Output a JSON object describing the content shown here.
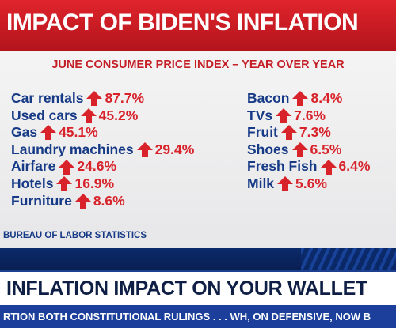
{
  "title": "IMPACT OF BIDEN'S INFLATION",
  "subtitle": "JUNE CONSUMER PRICE INDEX – YEAR OVER YEAR",
  "left_items": [
    {
      "label": "Car rentals",
      "value": "87.7%"
    },
    {
      "label": "Used cars",
      "value": "45.2%"
    },
    {
      "label": "Gas",
      "value": "45.1%"
    },
    {
      "label": "Laundry machines",
      "value": "29.4%"
    },
    {
      "label": "Airfare",
      "value": "24.6%"
    },
    {
      "label": "Hotels",
      "value": "16.9%"
    },
    {
      "label": "Furniture",
      "value": "8.6%"
    }
  ],
  "right_items": [
    {
      "label": "Bacon",
      "value": "8.4%"
    },
    {
      "label": "TVs",
      "value": "7.6%"
    },
    {
      "label": "Fruit",
      "value": "7.3%"
    },
    {
      "label": "Shoes",
      "value": "6.5%"
    },
    {
      "label": "Fresh Fish",
      "value": "6.4%"
    },
    {
      "label": "Milk",
      "value": "5.6%"
    }
  ],
  "source": "BUREAU OF LABOR STATISTICS",
  "lower_third": "INFLATION IMPACT ON YOUR WALLET",
  "ticker": "RTION BOTH CONSTITUTIONAL RULINGS . . .     WH, ON DEFENSIVE, NOW B",
  "colors": {
    "title_red": "#c8161e",
    "item_blue": "#163a86",
    "value_red": "#d8232b",
    "ticker_blue": "#1b3f9b"
  },
  "icon": "up-arrow-icon"
}
